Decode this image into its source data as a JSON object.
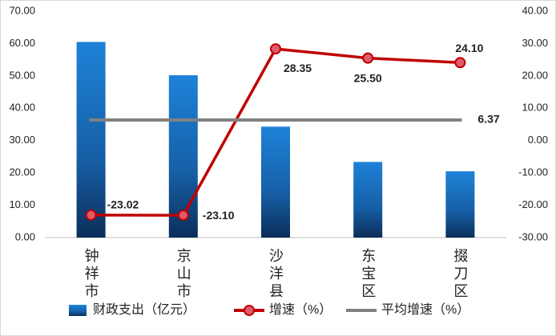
{
  "chart_data": {
    "type": "bar",
    "categories": [
      "钟祥市",
      "京山市",
      "沙洋县",
      "东宝区",
      "掇刀区"
    ],
    "series": [
      {
        "name": "财政支出（亿元）",
        "type": "bar",
        "color": "#1a75c9",
        "values": [
          60.5,
          50.2,
          34.3,
          23.4,
          20.5
        ]
      },
      {
        "name": "增速（%）",
        "type": "line",
        "axis": "y2",
        "color": "#c00000",
        "values": [
          -23.02,
          -23.1,
          28.35,
          25.5,
          24.1
        ],
        "value_labels": [
          "-23.02",
          "-23.10",
          "28.35",
          "25.50",
          "24.10"
        ]
      },
      {
        "name": "平均增速（%）",
        "type": "line",
        "axis": "y2",
        "color": "#808080",
        "values": [
          6.37,
          6.37,
          6.37,
          6.37,
          6.37
        ],
        "value_labels": [
          null,
          null,
          null,
          null,
          "6.37"
        ]
      }
    ],
    "ylim": [
      0,
      70
    ],
    "yticks": [
      {
        "value": 0,
        "label": "0.00"
      },
      {
        "value": 10,
        "label": "10.00"
      },
      {
        "value": 20,
        "label": "20.00"
      },
      {
        "value": 30,
        "label": "30.00"
      },
      {
        "value": 40,
        "label": "40.00"
      },
      {
        "value": 50,
        "label": "50.00"
      },
      {
        "value": 60,
        "label": "60.00"
      },
      {
        "value": 70,
        "label": "70.00"
      }
    ],
    "y2lim": [
      -30,
      40
    ],
    "y2ticks": [
      {
        "value": -30,
        "label": "-30.00"
      },
      {
        "value": -20,
        "label": "-20.00"
      },
      {
        "value": -10,
        "label": "-10.00"
      },
      {
        "value": 0,
        "label": "0.00"
      },
      {
        "value": 10,
        "label": "10.00"
      },
      {
        "value": 20,
        "label": "20.00"
      },
      {
        "value": 30,
        "label": "30.00"
      },
      {
        "value": 40,
        "label": "40.00"
      }
    ]
  }
}
